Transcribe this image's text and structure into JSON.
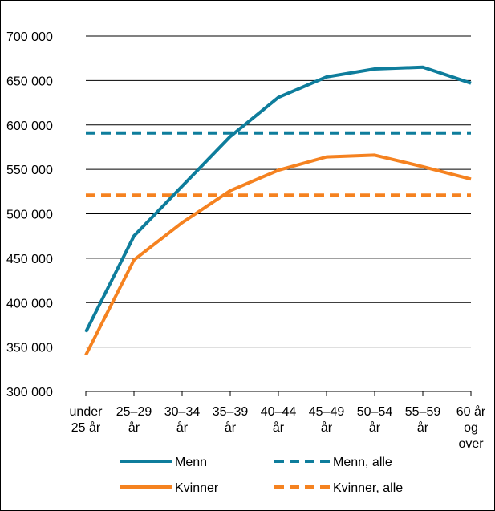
{
  "chart_data": {
    "type": "line",
    "title": "",
    "xlabel": "",
    "ylabel": "",
    "ylim": [
      300000,
      700000
    ],
    "yticks": [
      300000,
      350000,
      400000,
      450000,
      500000,
      550000,
      600000,
      650000,
      700000
    ],
    "ytick_labels": [
      "300 000",
      "350 000",
      "400 000",
      "450 000",
      "500 000",
      "550 000",
      "600 000",
      "650 000",
      "700 000"
    ],
    "grid": true,
    "legend_position": "bottom",
    "categories": [
      [
        "under",
        "25 år"
      ],
      [
        "25–29",
        "år"
      ],
      [
        "30–34",
        "år"
      ],
      [
        "35–39",
        "år"
      ],
      [
        "40–44",
        "år"
      ],
      [
        "45–49",
        "år"
      ],
      [
        "50–54",
        "år"
      ],
      [
        "55–59",
        "år"
      ],
      [
        "60 år",
        "og",
        "over"
      ]
    ],
    "series": [
      {
        "name": "Menn",
        "style": "solid",
        "color": "#0e7d9c",
        "values": [
          367000,
          475000,
          531000,
          587000,
          631000,
          654000,
          663000,
          665000,
          647000
        ]
      },
      {
        "name": "Kvinner",
        "style": "solid",
        "color": "#f58220",
        "values": [
          341000,
          448000,
          490000,
          526000,
          549000,
          564000,
          566000,
          553000,
          539000
        ]
      },
      {
        "name": "Menn, alle",
        "style": "dashed",
        "color": "#0e7d9c",
        "values": [
          591000,
          591000,
          591000,
          591000,
          591000,
          591000,
          591000,
          591000,
          591000
        ]
      },
      {
        "name": "Kvinner, alle",
        "style": "dashed",
        "color": "#f58220",
        "values": [
          521000,
          521000,
          521000,
          521000,
          521000,
          521000,
          521000,
          521000,
          521000
        ]
      }
    ],
    "legend": [
      {
        "series": "Menn"
      },
      {
        "series": "Menn, alle"
      },
      {
        "series": "Kvinner"
      },
      {
        "series": "Kvinner, alle"
      }
    ]
  }
}
